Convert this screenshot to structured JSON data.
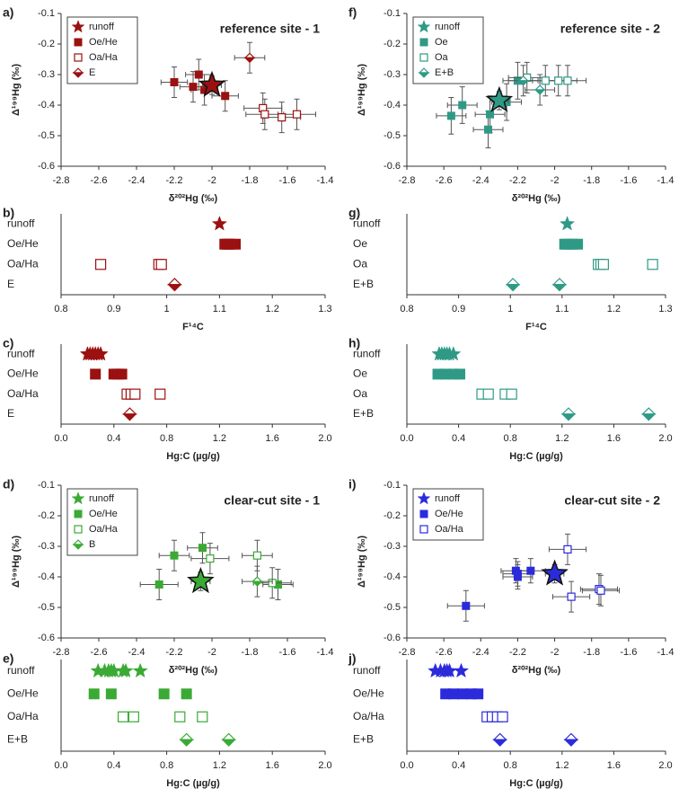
{
  "chart_data": [
    {
      "label": "a)",
      "type": "scatter",
      "title": "reference site - 1",
      "xlabel": "δ²⁰²Hg (‰)",
      "ylabel": "Δ¹⁹⁹Hg (‰)",
      "xlim": [
        -2.8,
        -1.4
      ],
      "xticks": [
        -2.8,
        -2.6,
        -2.4,
        -2.2,
        -2,
        -1.8,
        -1.6,
        -1.4
      ],
      "ylim": [
        -0.6,
        -0.1
      ],
      "yticks": [
        -0.6,
        -0.5,
        -0.4,
        -0.3,
        -0.2,
        -0.1
      ],
      "legend": "upper left",
      "series": [
        {
          "name": "runoff",
          "color": "#9b1010",
          "marker": "star",
          "x": [
            -2.0
          ],
          "values": [
            -0.335
          ],
          "xerr": [
            0.05
          ],
          "yerr": [
            0.03
          ]
        },
        {
          "name": "Oe/He",
          "color": "#9b1010",
          "marker": "square",
          "x": [
            -2.2,
            -2.1,
            -2.07,
            -2.04,
            -1.93
          ],
          "values": [
            -0.325,
            -0.34,
            -0.3,
            -0.35,
            -0.37
          ],
          "xerr": [
            0.07,
            0.07,
            0.07,
            0.07,
            0.07
          ],
          "yerr": [
            0.05,
            0.05,
            0.05,
            0.05,
            0.05
          ]
        },
        {
          "name": "Oa/Ha",
          "color": "#9b1010",
          "marker": "open-square",
          "x": [
            -1.73,
            -1.72,
            -1.63,
            -1.55
          ],
          "values": [
            -0.41,
            -0.43,
            -0.44,
            -0.43
          ],
          "xerr": [
            0.1,
            0.1,
            0.1,
            0.1
          ],
          "yerr": [
            0.05,
            0.05,
            0.05,
            0.05
          ]
        },
        {
          "name": "E",
          "color": "#9b1010",
          "marker": "diamond",
          "x": [
            -1.8
          ],
          "values": [
            -0.245
          ],
          "xerr": [
            0.08
          ],
          "yerr": [
            0.05
          ]
        }
      ]
    },
    {
      "label": "b)",
      "type": "strip",
      "xlabel": "F¹⁴C",
      "xlim": [
        0.8,
        1.3
      ],
      "xticks": [
        0.8,
        0.9,
        1,
        1.1,
        1.2,
        1.3
      ],
      "series": [
        {
          "name": "runoff",
          "color": "#9b1010",
          "marker": "star",
          "values": [
            1.1
          ]
        },
        {
          "name": "Oe/He",
          "color": "#9b1010",
          "marker": "square",
          "values": [
            1.11,
            1.115,
            1.12,
            1.13
          ]
        },
        {
          "name": "Oa/Ha",
          "color": "#9b1010",
          "marker": "open-square",
          "values": [
            0.875,
            0.985,
            0.99
          ]
        },
        {
          "name": "E",
          "color": "#9b1010",
          "marker": "diamond",
          "values": [
            1.015
          ]
        }
      ]
    },
    {
      "label": "c)",
      "type": "strip",
      "xlabel": "Hg:C (µg/g)",
      "xlim": [
        0,
        2
      ],
      "xticks": [
        {
          "value": 0,
          "label": "0.0"
        },
        0.4,
        0.8,
        1.2,
        1.6,
        {
          "value": 2,
          "label": "2.0"
        }
      ],
      "series": [
        {
          "name": "runoff",
          "color": "#9b1010",
          "marker": "star",
          "values": [
            0.2,
            0.22,
            0.24,
            0.26,
            0.28,
            0.3
          ]
        },
        {
          "name": "Oe/He",
          "color": "#9b1010",
          "marker": "square",
          "values": [
            0.26,
            0.4,
            0.43,
            0.46
          ]
        },
        {
          "name": "Oa/Ha",
          "color": "#9b1010",
          "marker": "open-square",
          "values": [
            0.5,
            0.53,
            0.56,
            0.75
          ]
        },
        {
          "name": "E",
          "color": "#9b1010",
          "marker": "diamond",
          "values": [
            0.52
          ]
        }
      ]
    },
    {
      "label": "d)",
      "type": "scatter",
      "title": "clear-cut site - 1",
      "xlabel": "δ²⁰²Hg (‰)",
      "ylabel": "Δ¹⁹⁹Hg (‰)",
      "xlim": [
        -2.8,
        -1.4
      ],
      "xticks": [
        -2.8,
        -2.6,
        -2.4,
        -2.2,
        -2,
        -1.8,
        -1.6,
        -1.4
      ],
      "ylim": [
        -0.6,
        -0.1
      ],
      "yticks": [
        -0.6,
        -0.5,
        -0.4,
        -0.3,
        -0.2,
        -0.1
      ],
      "legend": "upper left",
      "series": [
        {
          "name": "runoff",
          "color": "#3aaa35",
          "marker": "star",
          "x": [
            -2.06
          ],
          "values": [
            -0.415
          ],
          "xerr": [
            0.05
          ],
          "yerr": [
            0.03
          ]
        },
        {
          "name": "Oe/He",
          "color": "#3aaa35",
          "marker": "square",
          "x": [
            -2.28,
            -2.2,
            -2.05,
            -1.65
          ],
          "values": [
            -0.425,
            -0.33,
            -0.305,
            -0.425
          ],
          "xerr": [
            0.1,
            0.08,
            0.08,
            0.08
          ],
          "yerr": [
            0.05,
            0.05,
            0.05,
            0.05
          ]
        },
        {
          "name": "Oa/Ha",
          "color": "#3aaa35",
          "marker": "open-square",
          "x": [
            -2.01,
            -1.76,
            -1.68
          ],
          "values": [
            -0.34,
            -0.33,
            -0.42
          ],
          "xerr": [
            0.1,
            0.08,
            0.1
          ],
          "yerr": [
            0.05,
            0.05,
            0.05
          ]
        },
        {
          "name": "B",
          "color": "#3aaa35",
          "marker": "diamond",
          "x": [
            -1.76
          ],
          "values": [
            -0.415
          ],
          "xerr": [
            0.08
          ],
          "yerr": [
            0.05
          ]
        }
      ]
    },
    {
      "label": "e)",
      "type": "strip",
      "xlabel": "Hg:C (µg/g)",
      "xlim": [
        0,
        2
      ],
      "xticks": [
        {
          "value": 0,
          "label": "0.0"
        },
        0.4,
        0.8,
        1.2,
        1.6,
        {
          "value": 2,
          "label": "2.0"
        }
      ],
      "series": [
        {
          "name": "runoff",
          "color": "#3aaa35",
          "marker": "star",
          "values": [
            0.28,
            0.33,
            0.36,
            0.38,
            0.4,
            0.47,
            0.49,
            0.6
          ]
        },
        {
          "name": "Oe/He",
          "color": "#3aaa35",
          "marker": "square",
          "values": [
            0.25,
            0.38,
            0.78,
            0.95
          ]
        },
        {
          "name": "Oa/Ha",
          "color": "#3aaa35",
          "marker": "open-square",
          "values": [
            0.47,
            0.55,
            0.9,
            1.07
          ]
        },
        {
          "name": "E+B",
          "color": "#3aaa35",
          "marker": "diamond",
          "values": [
            0.95,
            1.27
          ]
        }
      ]
    },
    {
      "label": "f)",
      "type": "scatter",
      "title": "reference site - 2",
      "xlabel": "δ²⁰²Hg (‰)",
      "ylabel": "Δ¹⁹⁹Hg (‰)",
      "xlim": [
        -2.8,
        -1.4
      ],
      "xticks": [
        -2.8,
        -2.6,
        -2.4,
        -2.2,
        -2,
        -1.8,
        -1.6,
        -1.4
      ],
      "ylim": [
        -0.6,
        -0.1
      ],
      "yticks": [
        -0.6,
        -0.5,
        -0.4,
        -0.3,
        -0.2,
        -0.1
      ],
      "legend": "upper left",
      "series": [
        {
          "name": "runoff",
          "color": "#2e9a86",
          "marker": "star",
          "x": [
            -2.3
          ],
          "values": [
            -0.385
          ],
          "xerr": [
            0.05
          ],
          "yerr": [
            0.03
          ]
        },
        {
          "name": "Oe",
          "color": "#2e9a86",
          "marker": "square",
          "x": [
            -2.56,
            -2.5,
            -2.36,
            -2.35,
            -2.26,
            -2.2
          ],
          "values": [
            -0.435,
            -0.4,
            -0.48,
            -0.43,
            -0.39,
            -0.32
          ],
          "xerr": [
            0.08,
            0.08,
            0.08,
            0.08,
            0.08,
            0.08
          ],
          "yerr": [
            0.06,
            0.06,
            0.06,
            0.06,
            0.06,
            0.06
          ]
        },
        {
          "name": "Oa",
          "color": "#2e9a86",
          "marker": "open-square",
          "x": [
            -2.15,
            -2.05,
            -1.98,
            -1.93
          ],
          "values": [
            -0.31,
            -0.32,
            -0.32,
            -0.32
          ],
          "xerr": [
            0.1,
            0.1,
            0.1,
            0.1
          ],
          "yerr": [
            0.05,
            0.05,
            0.05,
            0.05
          ]
        },
        {
          "name": "E+B",
          "color": "#2e9a86",
          "marker": "diamond",
          "x": [
            -2.17,
            -2.08
          ],
          "values": [
            -0.32,
            -0.35
          ],
          "xerr": [
            0.08,
            0.08
          ],
          "yerr": [
            0.05,
            0.05
          ]
        }
      ]
    },
    {
      "label": "g)",
      "type": "strip",
      "xlabel": "F¹⁴C",
      "xlim": [
        0.8,
        1.3
      ],
      "xticks": [
        0.8,
        0.9,
        1,
        1.1,
        1.2,
        1.3
      ],
      "series": [
        {
          "name": "runoff",
          "color": "#2e9a86",
          "marker": "star",
          "values": [
            1.11
          ]
        },
        {
          "name": "Oe",
          "color": "#2e9a86",
          "marker": "square",
          "values": [
            1.105,
            1.11,
            1.12,
            1.13
          ]
        },
        {
          "name": "Oa",
          "color": "#2e9a86",
          "marker": "open-square",
          "values": [
            1.17,
            1.175,
            1.18,
            1.275
          ]
        },
        {
          "name": "E+B",
          "color": "#2e9a86",
          "marker": "diamond",
          "values": [
            1.005,
            1.095
          ]
        }
      ]
    },
    {
      "label": "h)",
      "type": "strip",
      "xlabel": "Hg:C (µg/g)",
      "xlim": [
        0,
        2
      ],
      "xticks": [
        {
          "value": 0,
          "label": "0.0"
        },
        0.4,
        0.8,
        1.2,
        1.6,
        {
          "value": 2,
          "label": "2.0"
        }
      ],
      "series": [
        {
          "name": "runoff",
          "color": "#2e9a86",
          "marker": "star",
          "values": [
            0.25,
            0.27,
            0.29,
            0.31,
            0.33,
            0.36
          ]
        },
        {
          "name": "Oe",
          "color": "#2e9a86",
          "marker": "square",
          "values": [
            0.24,
            0.3,
            0.36,
            0.41
          ]
        },
        {
          "name": "Oa",
          "color": "#2e9a86",
          "marker": "open-square",
          "values": [
            0.58,
            0.63,
            0.76,
            0.81
          ]
        },
        {
          "name": "E+B",
          "color": "#2e9a86",
          "marker": "diamond",
          "values": [
            1.25,
            1.87
          ]
        }
      ]
    },
    {
      "label": "i)",
      "type": "scatter",
      "title": "clear-cut site - 2",
      "xlabel": "δ²⁰²Hg (‰)",
      "ylabel": "Δ¹⁹⁹Hg (‰)",
      "xlim": [
        -2.8,
        -1.4
      ],
      "xticks": [
        -2.8,
        -2.6,
        -2.4,
        -2.2,
        -2,
        -1.8,
        -1.6,
        -1.4
      ],
      "ylim": [
        -0.6,
        -0.1
      ],
      "yticks": [
        -0.6,
        -0.5,
        -0.4,
        -0.3,
        -0.2,
        -0.1
      ],
      "legend": "upper left",
      "series": [
        {
          "name": "runoff",
          "color": "#2b2bdc",
          "marker": "star",
          "x": [
            -2.0
          ],
          "values": [
            -0.39
          ],
          "xerr": [
            0.05
          ],
          "yerr": [
            0.03
          ]
        },
        {
          "name": "Oe/He",
          "color": "#2b2bdc",
          "marker": "square",
          "x": [
            -2.48,
            -2.21,
            -2.2,
            -2.2,
            -2.13
          ],
          "values": [
            -0.495,
            -0.38,
            -0.39,
            -0.4,
            -0.38
          ],
          "xerr": [
            0.1,
            0.08,
            0.08,
            0.08,
            0.08
          ],
          "yerr": [
            0.05,
            0.04,
            0.04,
            0.04,
            0.04
          ]
        },
        {
          "name": "Oa/Ha",
          "color": "#2b2bdc",
          "marker": "open-square",
          "x": [
            -1.93,
            -1.91,
            -1.76,
            -1.75
          ],
          "values": [
            -0.31,
            -0.465,
            -0.44,
            -0.445
          ],
          "xerr": [
            0.1,
            0.1,
            0.1,
            0.1
          ],
          "yerr": [
            0.05,
            0.05,
            0.05,
            0.05
          ]
        }
      ]
    },
    {
      "label": "j)",
      "type": "strip",
      "xlabel": "Hg:C (µg/g)",
      "xlim": [
        0,
        2
      ],
      "xticks": [
        {
          "value": 0,
          "label": "0.0"
        },
        0.4,
        0.8,
        1.2,
        1.6,
        {
          "value": 2,
          "label": "2.0"
        }
      ],
      "series": [
        {
          "name": "runoff",
          "color": "#2b2bdc",
          "marker": "star",
          "values": [
            0.22,
            0.26,
            0.29,
            0.31,
            0.33,
            0.42
          ]
        },
        {
          "name": "Oe/He",
          "color": "#2b2bdc",
          "marker": "square",
          "values": [
            0.3,
            0.36,
            0.43,
            0.5,
            0.55
          ]
        },
        {
          "name": "Oa/Ha",
          "color": "#2b2bdc",
          "marker": "open-square",
          "values": [
            0.62,
            0.66,
            0.7,
            0.74
          ]
        },
        {
          "name": "E+B",
          "color": "#2b2bdc",
          "marker": "diamond",
          "values": [
            0.72,
            1.27
          ]
        }
      ]
    }
  ]
}
